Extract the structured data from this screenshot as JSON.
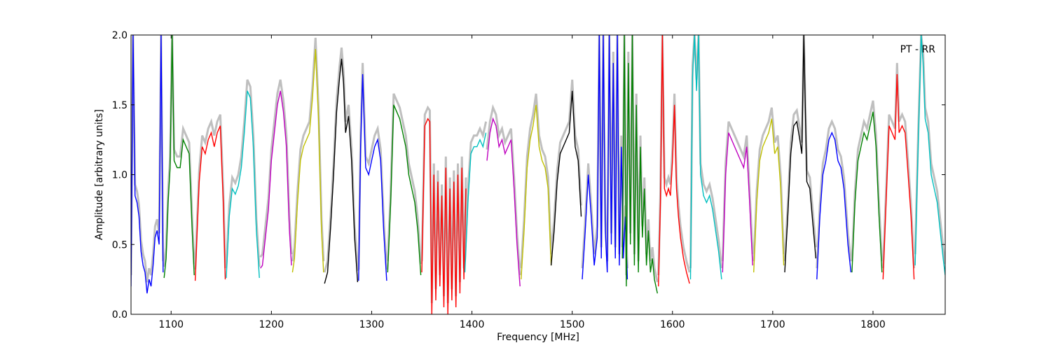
{
  "chart_data": {
    "type": "line",
    "annotation": "PT - RR",
    "xlabel": "Frequency [MHz]",
    "ylabel": "Amplitude [arbitrary units]",
    "xlim": [
      1060,
      1872
    ],
    "ylim": [
      0.0,
      2.0
    ],
    "x_ticks": [
      1100,
      1200,
      1300,
      1400,
      1500,
      1600,
      1700,
      1800
    ],
    "y_ticks": [
      0.0,
      0.5,
      1.0,
      1.5,
      2.0
    ],
    "x_tick_labels": [
      "1100",
      "1200",
      "1300",
      "1400",
      "1500",
      "1600",
      "1700",
      "1800"
    ],
    "y_tick_labels": [
      "0.0",
      "0.5",
      "1.0",
      "1.5",
      "2.0"
    ],
    "grid": false,
    "background_series_color": "#bfbfbf",
    "subbands": [
      {
        "color": "#0000ff",
        "x": [
          1060,
          1062,
          1064,
          1066,
          1068,
          1070,
          1072,
          1074,
          1076,
          1078,
          1080,
          1082,
          1084,
          1086,
          1088,
          1090,
          1092
        ],
        "y": [
          0.2,
          2.0,
          0.85,
          0.8,
          0.7,
          0.45,
          0.35,
          0.3,
          0.15,
          0.25,
          0.2,
          0.35,
          0.55,
          0.6,
          0.5,
          2.0,
          0.3
        ]
      },
      {
        "color": "#008000",
        "x": [
          1093,
          1095,
          1097,
          1099,
          1101,
          1103,
          1106,
          1109,
          1112,
          1115,
          1118,
          1121,
          1123
        ],
        "y": [
          0.26,
          0.4,
          0.8,
          1.05,
          2.0,
          1.1,
          1.05,
          1.05,
          1.25,
          1.2,
          1.15,
          0.6,
          0.28
        ]
      },
      {
        "color": "#ff0000",
        "x": [
          1124,
          1126,
          1128,
          1131,
          1134,
          1137,
          1140,
          1143,
          1146,
          1149,
          1152,
          1154
        ],
        "y": [
          0.24,
          0.6,
          0.95,
          1.2,
          1.15,
          1.25,
          1.3,
          1.2,
          1.3,
          1.35,
          0.8,
          0.25
        ]
      },
      {
        "color": "#00bfbf",
        "x": [
          1155,
          1158,
          1161,
          1164,
          1167,
          1170,
          1173,
          1176,
          1179,
          1182,
          1185,
          1188
        ],
        "y": [
          0.26,
          0.7,
          0.9,
          0.86,
          0.92,
          1.05,
          1.3,
          1.6,
          1.55,
          1.2,
          0.6,
          0.26
        ]
      },
      {
        "color": "#bf00bf",
        "x": [
          1189,
          1191,
          1194,
          1197,
          1200,
          1203,
          1206,
          1209,
          1212,
          1215,
          1218,
          1220
        ],
        "y": [
          0.33,
          0.35,
          0.55,
          0.75,
          1.1,
          1.3,
          1.5,
          1.6,
          1.45,
          1.2,
          0.6,
          0.35
        ]
      },
      {
        "color": "#bfbf00",
        "x": [
          1221,
          1223,
          1226,
          1229,
          1232,
          1235,
          1238,
          1241,
          1244,
          1247,
          1250,
          1252
        ],
        "y": [
          0.3,
          0.4,
          0.8,
          1.1,
          1.2,
          1.25,
          1.3,
          1.55,
          1.9,
          1.4,
          0.6,
          0.3
        ]
      },
      {
        "color": "#000000",
        "x": [
          1253,
          1256,
          1259,
          1262,
          1265,
          1268,
          1270,
          1272,
          1274,
          1277,
          1280,
          1283,
          1286
        ],
        "y": [
          0.22,
          0.3,
          0.62,
          1.0,
          1.45,
          1.7,
          1.83,
          1.65,
          1.3,
          1.42,
          1.1,
          0.55,
          0.23
        ]
      },
      {
        "color": "#0000ff",
        "x": [
          1287,
          1289,
          1291,
          1294,
          1297,
          1300,
          1303,
          1306,
          1309,
          1312,
          1315
        ],
        "y": [
          0.24,
          1.2,
          1.72,
          1.05,
          1.0,
          1.1,
          1.2,
          1.25,
          1.1,
          0.6,
          0.24
        ]
      },
      {
        "color": "#008000",
        "x": [
          1316,
          1319,
          1322,
          1325,
          1328,
          1331,
          1334,
          1337,
          1340,
          1343,
          1346,
          1349
        ],
        "y": [
          0.3,
          0.8,
          1.5,
          1.45,
          1.4,
          1.3,
          1.2,
          1.0,
          0.9,
          0.8,
          0.6,
          0.28
        ]
      },
      {
        "color": "#ff0000",
        "x": [
          1350,
          1353,
          1356,
          1358,
          1360,
          1362,
          1364,
          1366,
          1368,
          1370,
          1372,
          1374,
          1376,
          1378,
          1380,
          1382,
          1384,
          1386,
          1388,
          1390,
          1392,
          1394
        ],
        "y": [
          0.3,
          1.35,
          1.4,
          1.38,
          0.0,
          1.0,
          0.1,
          0.95,
          0.2,
          0.85,
          0.05,
          1.05,
          0.0,
          0.9,
          0.1,
          0.95,
          0.05,
          1.0,
          0.15,
          1.05,
          0.25,
          0.9
        ]
      },
      {
        "color": "#00bfbf",
        "x": [
          1393,
          1396,
          1399,
          1402,
          1405,
          1408,
          1411,
          1414
        ],
        "y": [
          0.3,
          0.8,
          1.15,
          1.2,
          1.2,
          1.25,
          1.2,
          1.3
        ]
      },
      {
        "color": "#bf00bf",
        "x": [
          1415,
          1418,
          1421,
          1424,
          1427,
          1430,
          1433,
          1436,
          1439,
          1442,
          1445,
          1448
        ],
        "y": [
          1.1,
          1.3,
          1.4,
          1.35,
          1.2,
          1.25,
          1.15,
          1.2,
          1.25,
          0.9,
          0.5,
          0.2
        ]
      },
      {
        "color": "#bfbf00",
        "x": [
          1449,
          1452,
          1455,
          1458,
          1461,
          1464,
          1467,
          1470,
          1473,
          1476,
          1479
        ],
        "y": [
          0.25,
          0.6,
          1.05,
          1.25,
          1.35,
          1.5,
          1.2,
          1.1,
          1.05,
          0.9,
          0.35
        ]
      },
      {
        "color": "#000000",
        "x": [
          1479,
          1482,
          1485,
          1488,
          1491,
          1494,
          1497,
          1500,
          1503,
          1506,
          1509
        ],
        "y": [
          0.35,
          0.6,
          0.95,
          1.15,
          1.2,
          1.25,
          1.3,
          1.6,
          1.2,
          1.1,
          0.7
        ]
      },
      {
        "color": "#0000ff",
        "x": [
          1510,
          1513,
          1516,
          1519,
          1522,
          1525,
          1527,
          1529,
          1531,
          1533,
          1535,
          1537,
          1539,
          1541,
          1543,
          1545,
          1547,
          1549,
          1551,
          1553,
          1555
        ],
        "y": [
          0.25,
          0.6,
          1.0,
          0.7,
          0.35,
          0.55,
          2.0,
          0.4,
          2.0,
          0.6,
          0.3,
          2.0,
          0.5,
          1.8,
          0.4,
          2.0,
          0.35,
          1.2,
          0.4,
          0.7,
          0.25
        ]
      },
      {
        "color": "#008000",
        "x": [
          1550,
          1552,
          1554,
          1556,
          1558,
          1560,
          1562,
          1564,
          1566,
          1568,
          1570,
          1572,
          1574,
          1576,
          1578,
          1580,
          1582,
          1585
        ],
        "y": [
          0.4,
          2.0,
          0.2,
          1.8,
          0.5,
          2.0,
          0.35,
          1.5,
          0.3,
          1.2,
          0.55,
          0.9,
          0.35,
          0.6,
          0.3,
          0.4,
          0.25,
          0.15
        ]
      },
      {
        "color": "#ff0000",
        "x": [
          1586,
          1588,
          1590,
          1592,
          1594,
          1596,
          1598,
          1600,
          1602,
          1604,
          1606,
          1608,
          1611,
          1614,
          1617
        ],
        "y": [
          0.2,
          0.8,
          2.0,
          0.9,
          0.85,
          0.9,
          0.85,
          1.1,
          1.5,
          0.9,
          0.7,
          0.55,
          0.4,
          0.3,
          0.22
        ]
      },
      {
        "color": "#00bfbf",
        "x": [
          1618,
          1620,
          1622,
          1624,
          1626,
          1628,
          1631,
          1634,
          1637,
          1640,
          1643,
          1646,
          1649
        ],
        "y": [
          0.25,
          1.7,
          2.0,
          1.6,
          2.0,
          1.0,
          0.85,
          0.8,
          0.85,
          0.75,
          0.6,
          0.45,
          0.25
        ]
      },
      {
        "color": "#bf00bf",
        "x": [
          1650,
          1653,
          1656,
          1659,
          1662,
          1665,
          1668,
          1671,
          1674,
          1677,
          1680
        ],
        "y": [
          0.3,
          1.0,
          1.3,
          1.25,
          1.2,
          1.15,
          1.1,
          1.05,
          1.2,
          0.8,
          0.35
        ]
      },
      {
        "color": "#bfbf00",
        "x": [
          1681,
          1684,
          1687,
          1690,
          1693,
          1696,
          1699,
          1702,
          1705,
          1708,
          1711
        ],
        "y": [
          0.3,
          0.8,
          1.1,
          1.2,
          1.25,
          1.3,
          1.4,
          1.15,
          1.2,
          0.9,
          0.35
        ]
      },
      {
        "color": "#000000",
        "x": [
          1712,
          1715,
          1718,
          1721,
          1724,
          1727,
          1729,
          1731,
          1734,
          1737,
          1740,
          1743
        ],
        "y": [
          0.3,
          0.7,
          1.15,
          1.35,
          1.38,
          1.25,
          1.15,
          2.0,
          0.95,
          0.9,
          0.65,
          0.4
        ]
      },
      {
        "color": "#0000ff",
        "x": [
          1744,
          1747,
          1750,
          1753,
          1756,
          1759,
          1762,
          1765,
          1768,
          1771,
          1775,
          1778
        ],
        "y": [
          0.25,
          0.7,
          1.0,
          1.1,
          1.25,
          1.3,
          1.25,
          1.1,
          1.05,
          0.9,
          0.5,
          0.3
        ]
      },
      {
        "color": "#008000",
        "x": [
          1779,
          1782,
          1785,
          1788,
          1791,
          1794,
          1797,
          1800,
          1803,
          1806,
          1809
        ],
        "y": [
          0.3,
          0.8,
          1.1,
          1.2,
          1.3,
          1.25,
          1.35,
          1.45,
          1.2,
          0.7,
          0.3
        ]
      },
      {
        "color": "#ff0000",
        "x": [
          1810,
          1813,
          1816,
          1819,
          1822,
          1824,
          1826,
          1829,
          1832,
          1835,
          1838,
          1841
        ],
        "y": [
          0.25,
          0.8,
          1.35,
          1.3,
          1.25,
          1.72,
          1.3,
          1.35,
          1.3,
          1.0,
          0.7,
          0.25
        ]
      },
      {
        "color": "#00bfbf",
        "x": [
          1842,
          1845,
          1848,
          1850,
          1852,
          1855,
          1858,
          1861,
          1864,
          1867,
          1870,
          1872
        ],
        "y": [
          0.35,
          1.2,
          2.0,
          1.8,
          1.4,
          1.3,
          1.0,
          0.9,
          0.8,
          0.6,
          0.4,
          0.28
        ]
      }
    ]
  }
}
